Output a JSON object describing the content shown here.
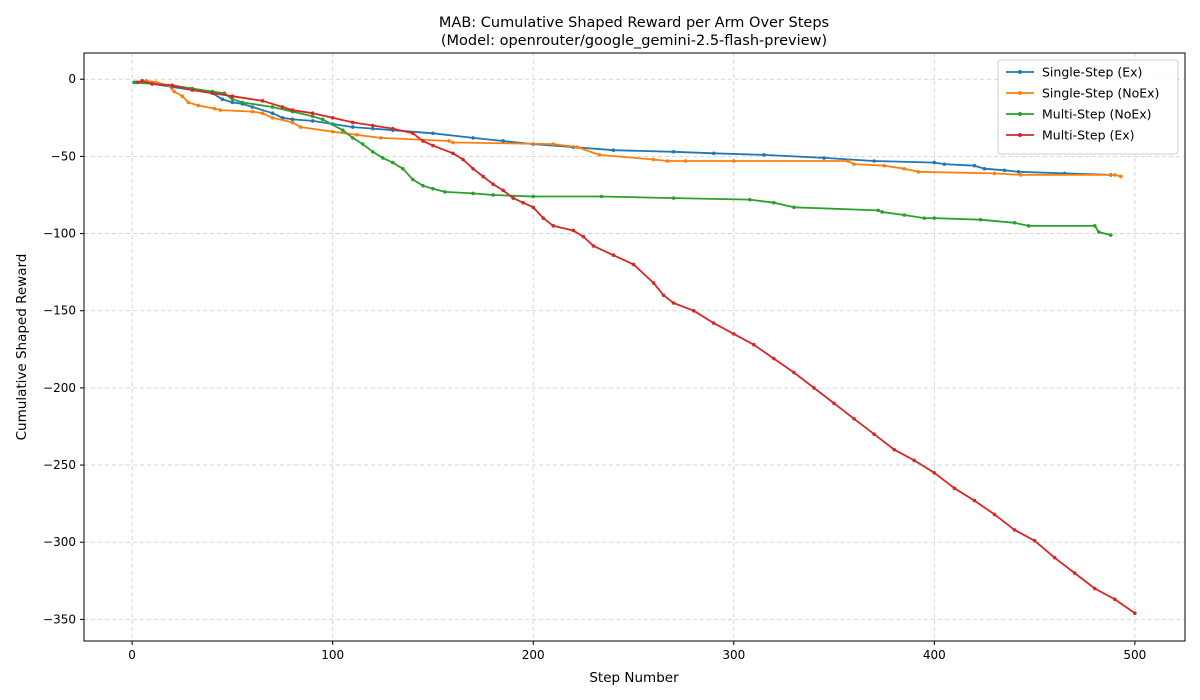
{
  "chart_data": {
    "type": "line",
    "title": "MAB: Cumulative Shaped Reward per Arm Over Steps",
    "subtitle": "(Model: openrouter/google_gemini-2.5-flash-preview)",
    "xlabel": "Step Number",
    "ylabel": "Cumulative Shaped Reward",
    "xlim": [
      -24,
      525
    ],
    "ylim": [
      -364,
      17
    ],
    "xticks": [
      0,
      100,
      200,
      300,
      400,
      500
    ],
    "yticks": [
      0,
      -50,
      -100,
      -150,
      -200,
      -250,
      -300,
      -350
    ],
    "grid": true,
    "legend_position": "top-right",
    "series": [
      {
        "name": "Single-Step (Ex)",
        "color": "#1f77b4",
        "x": [
          2,
          10,
          20,
          30,
          40,
          45,
          50,
          55,
          60,
          70,
          75,
          80,
          90,
          100,
          110,
          120,
          130,
          150,
          170,
          185,
          200,
          220,
          240,
          270,
          290,
          315,
          345,
          370,
          400,
          405,
          420,
          425,
          435,
          442,
          465,
          488
        ],
        "y": [
          -2,
          -3,
          -5,
          -7,
          -9,
          -13,
          -15,
          -16,
          -18,
          -22,
          -25,
          -26,
          -27,
          -29,
          -31,
          -32,
          -33,
          -35,
          -38,
          -40,
          -42,
          -44,
          -46,
          -47,
          -48,
          -49,
          -51,
          -53,
          -54,
          -55,
          -56,
          -58,
          -59,
          -60,
          -61,
          -62
        ]
      },
      {
        "name": "Single-Step (NoEx)",
        "color": "#ff7f0e",
        "x": [
          5,
          7,
          12,
          18,
          21,
          25,
          28,
          33,
          41,
          44,
          60,
          65,
          70,
          80,
          84,
          100,
          112,
          124,
          158,
          160,
          210,
          222,
          233,
          260,
          267,
          276,
          300,
          357,
          360,
          375,
          385,
          392,
          430,
          443,
          490,
          493
        ],
        "y": [
          -2,
          -1,
          -2,
          -4,
          -8,
          -11,
          -15,
          -17,
          -19,
          -20,
          -21,
          -22,
          -25,
          -28,
          -31,
          -34,
          -36,
          -38,
          -40,
          -41,
          -42,
          -44,
          -49,
          -52,
          -53,
          -53,
          -53,
          -53,
          -55,
          -56,
          -58,
          -60,
          -61,
          -62,
          -62,
          -63
        ]
      },
      {
        "name": "Multi-Step (NoEx)",
        "color": "#2ca02c",
        "x": [
          1,
          10,
          20,
          30,
          40,
          46,
          50,
          55,
          70,
          80,
          90,
          95,
          105,
          110,
          115,
          120,
          125,
          130,
          135,
          140,
          145,
          150,
          156,
          170,
          180,
          200,
          234,
          270,
          308,
          320,
          330,
          372,
          374,
          385,
          395,
          400,
          423,
          440,
          447,
          480,
          482,
          488
        ],
        "y": [
          -2,
          -3,
          -4,
          -6,
          -8,
          -9,
          -13,
          -15,
          -18,
          -21,
          -24,
          -26,
          -33,
          -38,
          -42,
          -47,
          -51,
          -54,
          -58,
          -65,
          -69,
          -71,
          -73,
          -74,
          -75,
          -76,
          -76,
          -77,
          -78,
          -80,
          -83,
          -85,
          -86,
          -88,
          -90,
          -90,
          -91,
          -93,
          -95,
          -95,
          -99,
          -101
        ]
      },
      {
        "name": "Multi-Step (Ex)",
        "color": "#d62728",
        "x": [
          3,
          5,
          10,
          20,
          30,
          40,
          50,
          65,
          75,
          80,
          90,
          100,
          110,
          120,
          130,
          140,
          145,
          150,
          160,
          165,
          170,
          175,
          180,
          185,
          190,
          195,
          200,
          205,
          210,
          220,
          225,
          230,
          240,
          250,
          260,
          265,
          270,
          280,
          290,
          300,
          310,
          320,
          330,
          340,
          350,
          360,
          370,
          380,
          390,
          400,
          410,
          420,
          430,
          440,
          450,
          460,
          470,
          480,
          490,
          500
        ],
        "y": [
          -2,
          -1,
          -3,
          -4,
          -7,
          -9,
          -11,
          -14,
          -18,
          -20,
          -22,
          -25,
          -28,
          -30,
          -32,
          -35,
          -40,
          -43,
          -48,
          -52,
          -58,
          -63,
          -68,
          -72,
          -77,
          -80,
          -83,
          -90,
          -95,
          -98,
          -102,
          -108,
          -114,
          -120,
          -132,
          -140,
          -145,
          -150,
          -158,
          -165,
          -172,
          -181,
          -190,
          -200,
          -210,
          -220,
          -230,
          -240,
          -247,
          -255,
          -265,
          -273,
          -282,
          -292,
          -299,
          -310,
          -320,
          -330,
          -337,
          -346
        ]
      }
    ]
  }
}
